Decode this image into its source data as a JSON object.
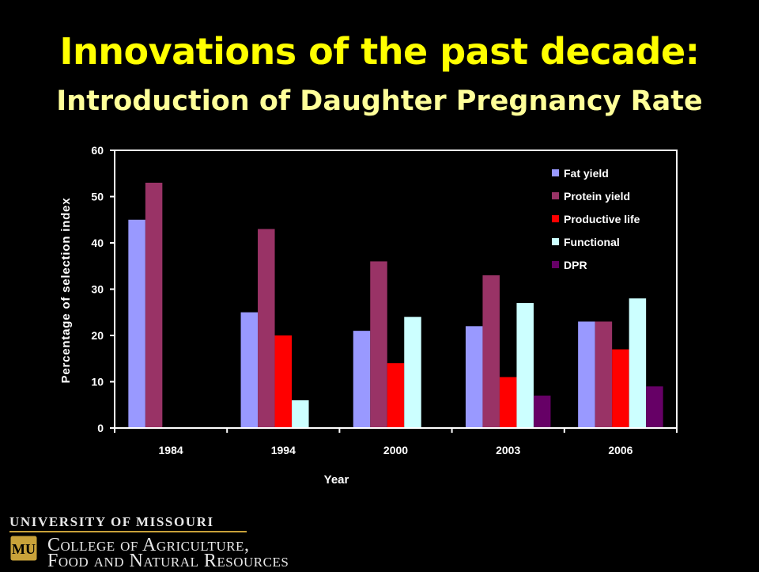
{
  "slide": {
    "title": "Innovations of the past decade:",
    "subtitle": "Introduction of Daughter Pregnancy Rate"
  },
  "footer": {
    "university": "UNIVERSITY OF MISSOURI",
    "college_line1": "College of Agriculture,",
    "college_line2": "Food and Natural Resources",
    "logo_text": "MU",
    "logo_color": "#c9a23a"
  },
  "chart_data": {
    "type": "bar",
    "categories": [
      "1984",
      "1994",
      "2000",
      "2003",
      "2006"
    ],
    "series": [
      {
        "name": "Fat yield",
        "color": "#9999ff",
        "values": [
          45,
          25,
          21,
          22,
          23
        ]
      },
      {
        "name": "Protein yield",
        "color": "#993366",
        "values": [
          53,
          43,
          36,
          33,
          23
        ]
      },
      {
        "name": "Productive life",
        "color": "#ff0000",
        "values": [
          0,
          20,
          14,
          11,
          17
        ]
      },
      {
        "name": "Functional",
        "color": "#ccffff",
        "values": [
          0,
          6,
          24,
          27,
          28
        ]
      },
      {
        "name": "DPR",
        "color": "#660066",
        "values": [
          0,
          0,
          0,
          7,
          9
        ]
      }
    ],
    "xlabel": "Year",
    "ylabel": "Percentage of selection index",
    "ylim": [
      0,
      60
    ],
    "yticks": [
      0,
      10,
      20,
      30,
      40,
      50,
      60
    ],
    "legend": "top-right",
    "grid": false
  }
}
